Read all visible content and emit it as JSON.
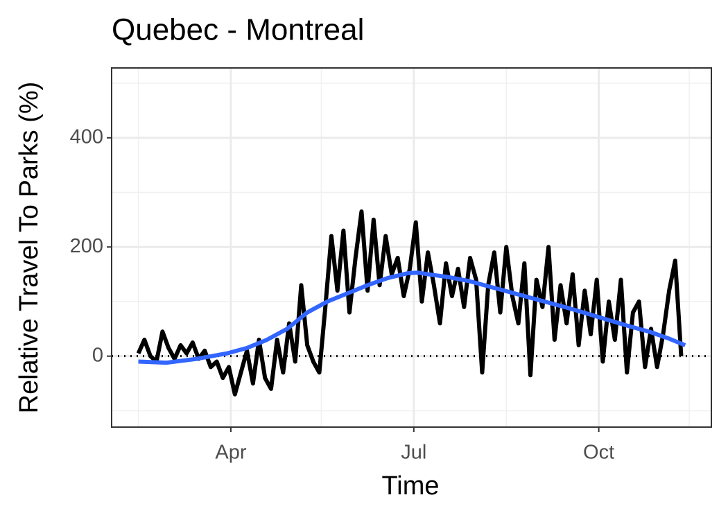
{
  "chart_data": {
    "type": "line",
    "title": "Quebec - Montreal",
    "x_label": "Time",
    "y_label": "Relative Travel To Parks (%)",
    "xlim": [
      32.7,
      331
    ],
    "ylim": [
      -130,
      528
    ],
    "xticks": [
      {
        "value": 92,
        "label": "Apr"
      },
      {
        "value": 183,
        "label": "Jul"
      },
      {
        "value": 275,
        "label": "Oct"
      }
    ],
    "x_minor_ticks": [
      46,
      137,
      229,
      320
    ],
    "yticks": [
      0,
      200,
      400
    ],
    "y_minor_ticks": [
      -100,
      100,
      300,
      500
    ],
    "grid": true,
    "hline": 0,
    "series": [
      {
        "color": "#000000",
        "x": [
          46,
          49,
          52,
          55,
          58,
          61,
          64,
          67,
          70,
          73,
          76,
          79,
          82,
          85,
          88,
          91,
          94,
          97,
          100,
          103,
          106,
          109,
          112,
          115,
          118,
          121,
          124,
          127,
          130,
          133,
          136,
          139,
          142,
          145,
          148,
          151,
          154,
          157,
          160,
          163,
          166,
          169,
          172,
          175,
          178,
          181,
          184,
          187,
          190,
          193,
          196,
          199,
          202,
          205,
          208,
          211,
          214,
          217,
          220,
          223,
          226,
          229,
          232,
          235,
          238,
          241,
          244,
          247,
          250,
          253,
          256,
          259,
          262,
          265,
          268,
          271,
          274,
          277,
          280,
          283,
          286,
          289,
          292,
          295,
          298,
          301,
          304,
          307,
          310,
          313,
          316
        ],
        "values": [
          5,
          30,
          0,
          -10,
          45,
          15,
          -5,
          20,
          5,
          25,
          -5,
          10,
          -20,
          -10,
          -40,
          -20,
          -70,
          -30,
          10,
          -50,
          30,
          -40,
          -60,
          30,
          -30,
          60,
          -10,
          130,
          20,
          -10,
          -30,
          90,
          220,
          120,
          230,
          80,
          180,
          265,
          120,
          250,
          130,
          220,
          150,
          180,
          110,
          160,
          245,
          100,
          190,
          130,
          60,
          170,
          110,
          160,
          90,
          180,
          140,
          -30,
          130,
          190,
          80,
          200,
          110,
          60,
          170,
          -35,
          140,
          90,
          200,
          30,
          130,
          60,
          150,
          20,
          120,
          40,
          140,
          -10,
          100,
          30,
          140,
          -30,
          80,
          100,
          -20,
          50,
          -20,
          40,
          120,
          175,
          0
        ]
      },
      {
        "color": "#3366ff",
        "x": [
          46,
          60,
          75,
          90,
          100,
          110,
          120,
          130,
          140,
          150,
          160,
          170,
          180,
          185,
          190,
          200,
          210,
          220,
          230,
          240,
          250,
          260,
          270,
          280,
          290,
          300,
          310,
          318
        ],
        "values": [
          -10,
          -12,
          -5,
          5,
          15,
          30,
          50,
          80,
          100,
          115,
          130,
          143,
          152,
          153,
          150,
          145,
          138,
          128,
          118,
          108,
          98,
          88,
          77,
          66,
          55,
          45,
          32,
          20
        ]
      }
    ]
  }
}
